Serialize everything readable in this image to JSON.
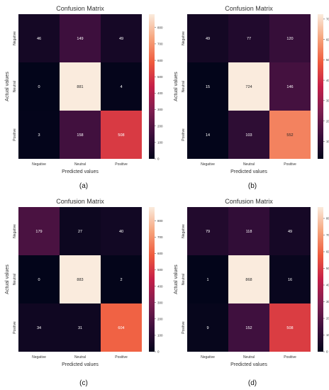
{
  "chart_data": [
    {
      "type": "heatmap",
      "title": "Confusion Matrix",
      "xlabel": "Predicted values",
      "ylabel": "Actual values",
      "x_categories": [
        "Negative",
        "Neutral",
        "Positive"
      ],
      "y_categories": [
        "Negative",
        "Neutral",
        "Positive"
      ],
      "values": [
        [
          46,
          149,
          49
        ],
        [
          0,
          881,
          4
        ],
        [
          3,
          158,
          508
        ]
      ],
      "colorbar_ticks": [
        0,
        100,
        200,
        300,
        400,
        500,
        600,
        700,
        800
      ],
      "vmin": 0,
      "vmax": 881,
      "caption": "(a)"
    },
    {
      "type": "heatmap",
      "title": "Confusion Matrix",
      "xlabel": "Predicted values",
      "ylabel": "Actual values",
      "x_categories": [
        "Negative",
        "Neutral",
        "Positive"
      ],
      "y_categories": [
        "Negative",
        "Neutral",
        "Positive"
      ],
      "values": [
        [
          49,
          77,
          120
        ],
        [
          15,
          724,
          146
        ],
        [
          14,
          103,
          552
        ]
      ],
      "colorbar_ticks": [
        100,
        200,
        300,
        400,
        500,
        600,
        700
      ],
      "vmin": 14,
      "vmax": 724,
      "caption": "(b)"
    },
    {
      "type": "heatmap",
      "title": "Confusion Matrix",
      "xlabel": "Predicted values",
      "ylabel": "Actual values",
      "x_categories": [
        "Negative",
        "Neutral",
        "Positive"
      ],
      "y_categories": [
        "Negative",
        "Neutral",
        "Positive"
      ],
      "values": [
        [
          179,
          27,
          40
        ],
        [
          0,
          883,
          2
        ],
        [
          34,
          31,
          604
        ]
      ],
      "colorbar_ticks": [
        0,
        100,
        200,
        300,
        400,
        500,
        600,
        700,
        800
      ],
      "vmin": 0,
      "vmax": 883,
      "caption": "(c)"
    },
    {
      "type": "heatmap",
      "title": "Confusion Matrix",
      "xlabel": "Predicted values",
      "ylabel": "Actual values",
      "x_categories": [
        "Negative",
        "Neutral",
        "Positive"
      ],
      "y_categories": [
        "Negative",
        "Neutral",
        "Positive"
      ],
      "values": [
        [
          79,
          118,
          49
        ],
        [
          1,
          868,
          16
        ],
        [
          9,
          152,
          508
        ]
      ],
      "colorbar_ticks": [
        0,
        100,
        200,
        300,
        400,
        500,
        600,
        700,
        800
      ],
      "vmin": 0,
      "vmax": 868,
      "caption": "(d)"
    }
  ],
  "colormap": [
    "#03051a",
    "#3c0f3d",
    "#7e1e50",
    "#c51f48",
    "#ef5a3d",
    "#f6a47c",
    "#faebdd"
  ]
}
